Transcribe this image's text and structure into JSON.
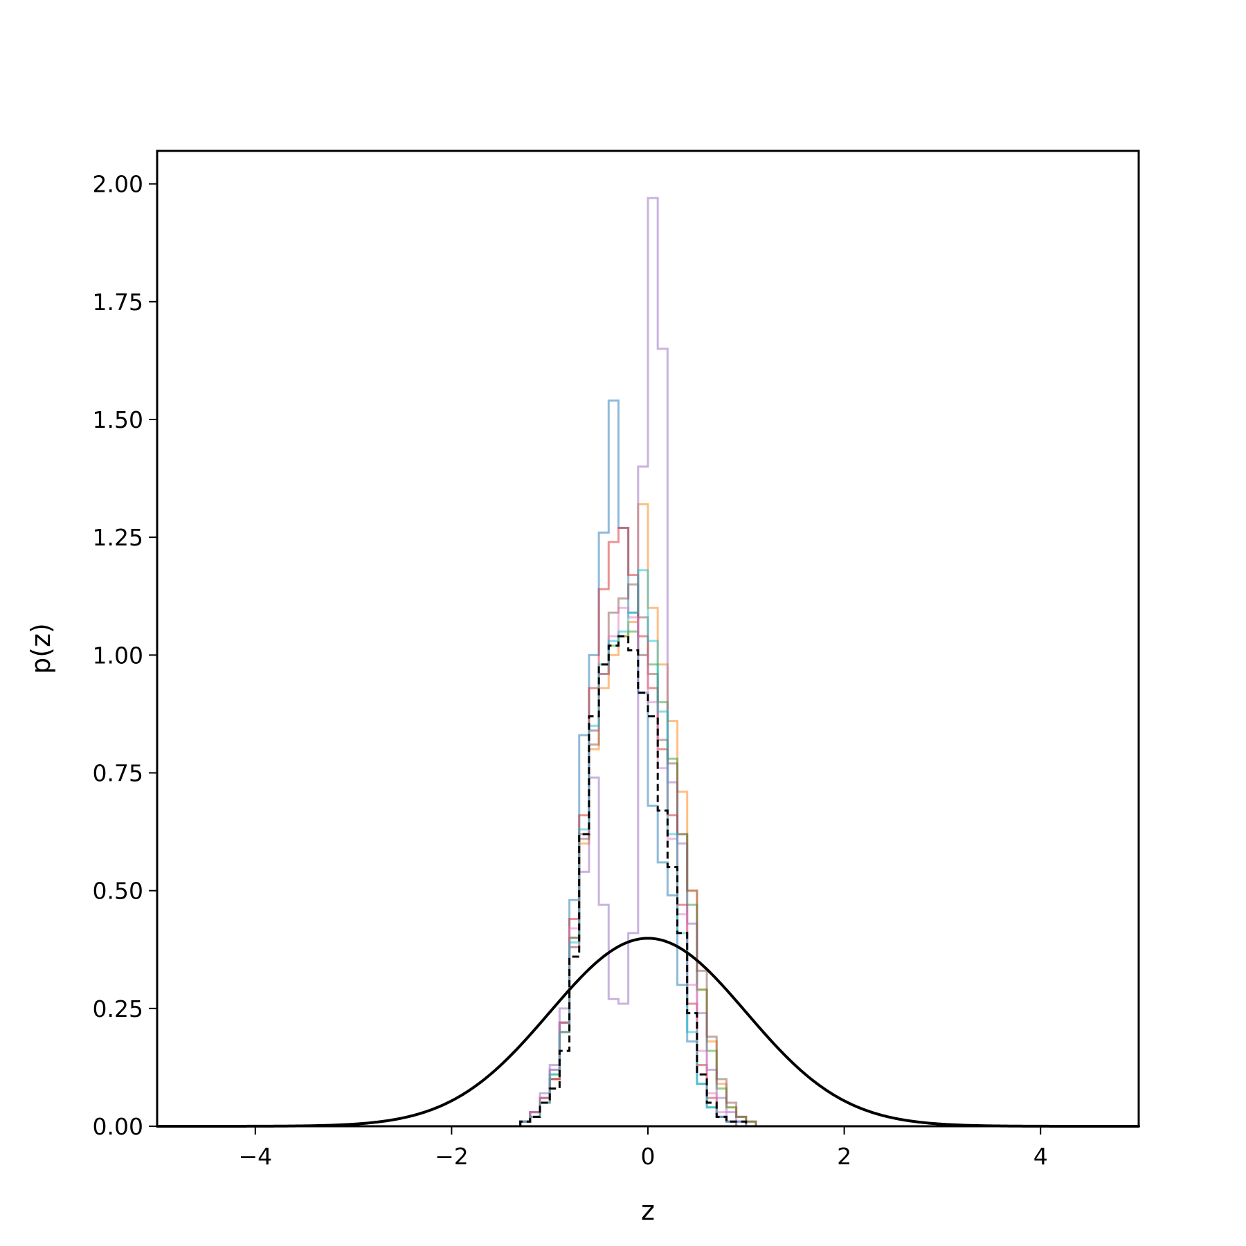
{
  "chart_data": {
    "type": "line",
    "title": "",
    "xlabel": "z",
    "ylabel": "p(z)",
    "xlim": [
      -5,
      5
    ],
    "ylim": [
      0,
      2.07
    ],
    "grid": false,
    "legend": "none",
    "x_ticks": [
      {
        "value": -4,
        "label": "−4"
      },
      {
        "value": -2,
        "label": "−2"
      },
      {
        "value": 0,
        "label": "0"
      },
      {
        "value": 2,
        "label": "2"
      },
      {
        "value": 4,
        "label": "4"
      }
    ],
    "y_ticks": [
      {
        "value": 0.0,
        "label": "0.00"
      },
      {
        "value": 0.25,
        "label": "0.25"
      },
      {
        "value": 0.5,
        "label": "0.50"
      },
      {
        "value": 0.75,
        "label": "0.75"
      },
      {
        "value": 1.0,
        "label": "1.00"
      },
      {
        "value": 1.25,
        "label": "1.25"
      },
      {
        "value": 1.5,
        "label": "1.50"
      },
      {
        "value": 1.75,
        "label": "1.75"
      },
      {
        "value": 2.0,
        "label": "2.00"
      }
    ],
    "prior_curve": {
      "kind": "standard normal density",
      "mean": 0,
      "std": 1,
      "color": "#000000"
    },
    "aggregate_histogram": {
      "style": "dashed",
      "color": "#000000",
      "bins": [
        -1.3,
        -1.2,
        -1.1,
        -1.0,
        -0.9,
        -0.8,
        -0.7,
        -0.6,
        -0.5,
        -0.4,
        -0.3,
        -0.2,
        -0.1,
        0.0,
        0.1,
        0.2,
        0.3,
        0.4,
        0.5,
        0.6,
        0.7,
        0.8,
        0.9,
        1.0
      ],
      "densities": [
        0.01,
        0.02,
        0.05,
        0.08,
        0.16,
        0.36,
        0.62,
        0.87,
        0.98,
        1.02,
        1.04,
        1.01,
        0.92,
        0.87,
        0.67,
        0.55,
        0.41,
        0.24,
        0.11,
        0.05,
        0.02,
        0.01,
        0.01
      ]
    },
    "series": [
      {
        "color": "#1f77b4",
        "bins": [
          -1.3,
          -1.2,
          -1.1,
          -1.0,
          -0.9,
          -0.8,
          -0.7,
          -0.6,
          -0.5,
          -0.4,
          -0.3,
          -0.2,
          -0.1,
          0.0,
          0.1,
          0.2,
          0.3,
          0.4,
          0.5,
          0.6,
          0.7,
          0.8,
          0.9,
          1.0,
          1.1
        ],
        "densities": [
          0.01,
          0.03,
          0.06,
          0.12,
          0.22,
          0.48,
          0.83,
          1.0,
          1.26,
          1.54,
          1.27,
          1.09,
          0.92,
          0.68,
          0.56,
          0.49,
          0.3,
          0.18,
          0.09,
          0.04,
          0.02,
          0.01,
          0.01,
          0.0
        ]
      },
      {
        "color": "#ff7f0e",
        "bins": [
          -1.3,
          -1.2,
          -1.1,
          -1.0,
          -0.9,
          -0.8,
          -0.7,
          -0.6,
          -0.5,
          -0.4,
          -0.3,
          -0.2,
          -0.1,
          0.0,
          0.1,
          0.2,
          0.3,
          0.4,
          0.5,
          0.6,
          0.7,
          0.8,
          0.9,
          1.0,
          1.1
        ],
        "densities": [
          0.01,
          0.02,
          0.05,
          0.1,
          0.2,
          0.38,
          0.6,
          0.8,
          0.93,
          1.0,
          1.04,
          1.07,
          1.32,
          1.1,
          0.98,
          0.86,
          0.71,
          0.5,
          0.29,
          0.18,
          0.09,
          0.04,
          0.02,
          0.01
        ]
      },
      {
        "color": "#2ca02c",
        "bins": [
          -1.3,
          -1.2,
          -1.1,
          -1.0,
          -0.9,
          -0.8,
          -0.7,
          -0.6,
          -0.5,
          -0.4,
          -0.3,
          -0.2,
          -0.1,
          0.0,
          0.1,
          0.2,
          0.3,
          0.4,
          0.5,
          0.6,
          0.7,
          0.8,
          0.9,
          1.0,
          1.1
        ],
        "densities": [
          0.01,
          0.03,
          0.06,
          0.11,
          0.22,
          0.4,
          0.62,
          0.84,
          0.96,
          1.02,
          1.04,
          1.05,
          1.0,
          0.98,
          0.9,
          0.78,
          0.62,
          0.47,
          0.29,
          0.16,
          0.08,
          0.04,
          0.02,
          0.01
        ]
      },
      {
        "color": "#d62728",
        "bins": [
          -1.3,
          -1.2,
          -1.1,
          -1.0,
          -0.9,
          -0.8,
          -0.7,
          -0.6,
          -0.5,
          -0.4,
          -0.3,
          -0.2,
          -0.1,
          0.0,
          0.1,
          0.2,
          0.3,
          0.4,
          0.5,
          0.6,
          0.7,
          0.8,
          0.9,
          1.0
        ],
        "densities": [
          0.01,
          0.03,
          0.06,
          0.1,
          0.22,
          0.44,
          0.66,
          0.93,
          1.14,
          1.24,
          1.27,
          1.17,
          1.04,
          0.93,
          0.8,
          0.66,
          0.47,
          0.26,
          0.13,
          0.06,
          0.02,
          0.01,
          0.0
        ]
      },
      {
        "color": "#9467bd",
        "bins": [
          -1.3,
          -1.2,
          -1.1,
          -1.0,
          -0.9,
          -0.8,
          -0.7,
          -0.6,
          -0.5,
          -0.4,
          -0.3,
          -0.2,
          -0.1,
          0.0,
          0.1,
          0.2,
          0.3,
          0.4,
          0.5,
          0.6,
          0.7,
          0.8,
          0.9,
          1.0,
          1.1
        ],
        "densities": [
          0.01,
          0.03,
          0.07,
          0.13,
          0.25,
          0.38,
          0.54,
          0.74,
          0.47,
          0.27,
          0.26,
          0.41,
          1.4,
          1.97,
          1.65,
          0.73,
          0.6,
          0.43,
          0.24,
          0.12,
          0.06,
          0.03,
          0.01,
          0.0
        ]
      },
      {
        "color": "#8c564b",
        "bins": [
          -1.3,
          -1.2,
          -1.1,
          -1.0,
          -0.9,
          -0.8,
          -0.7,
          -0.6,
          -0.5,
          -0.4,
          -0.3,
          -0.2,
          -0.1,
          0.0,
          0.1,
          0.2,
          0.3,
          0.4,
          0.5,
          0.6,
          0.7,
          0.8,
          0.9,
          1.0,
          1.1
        ],
        "densities": [
          0.01,
          0.02,
          0.05,
          0.1,
          0.2,
          0.4,
          0.61,
          0.81,
          0.96,
          1.09,
          1.12,
          1.15,
          1.08,
          0.96,
          0.82,
          0.77,
          0.62,
          0.5,
          0.33,
          0.19,
          0.1,
          0.05,
          0.02,
          0.01
        ]
      },
      {
        "color": "#e377c2",
        "bins": [
          -1.3,
          -1.2,
          -1.1,
          -1.0,
          -0.9,
          -0.8,
          -0.7,
          -0.6,
          -0.5,
          -0.4,
          -0.3,
          -0.2,
          -0.1,
          0.0,
          0.1,
          0.2,
          0.3,
          0.4,
          0.5,
          0.6,
          0.7,
          0.8,
          0.9,
          1.0
        ],
        "densities": [
          0.01,
          0.03,
          0.06,
          0.12,
          0.22,
          0.42,
          0.62,
          0.84,
          0.96,
          1.04,
          1.1,
          1.08,
          1.0,
          0.9,
          0.76,
          0.61,
          0.45,
          0.3,
          0.16,
          0.07,
          0.03,
          0.01,
          0.0
        ]
      },
      {
        "color": "#17becf",
        "bins": [
          -1.3,
          -1.2,
          -1.1,
          -1.0,
          -0.9,
          -0.8,
          -0.7,
          -0.6,
          -0.5,
          -0.4,
          -0.3,
          -0.2,
          -0.1,
          0.0,
          0.1,
          0.2,
          0.3,
          0.4,
          0.5,
          0.6,
          0.7,
          0.8,
          0.9,
          1.0
        ],
        "densities": [
          0.01,
          0.02,
          0.05,
          0.11,
          0.2,
          0.39,
          0.63,
          0.85,
          0.98,
          1.03,
          1.05,
          1.09,
          1.18,
          1.03,
          0.88,
          0.62,
          0.41,
          0.2,
          0.09,
          0.04,
          0.02,
          0.01,
          0.0
        ]
      }
    ]
  }
}
